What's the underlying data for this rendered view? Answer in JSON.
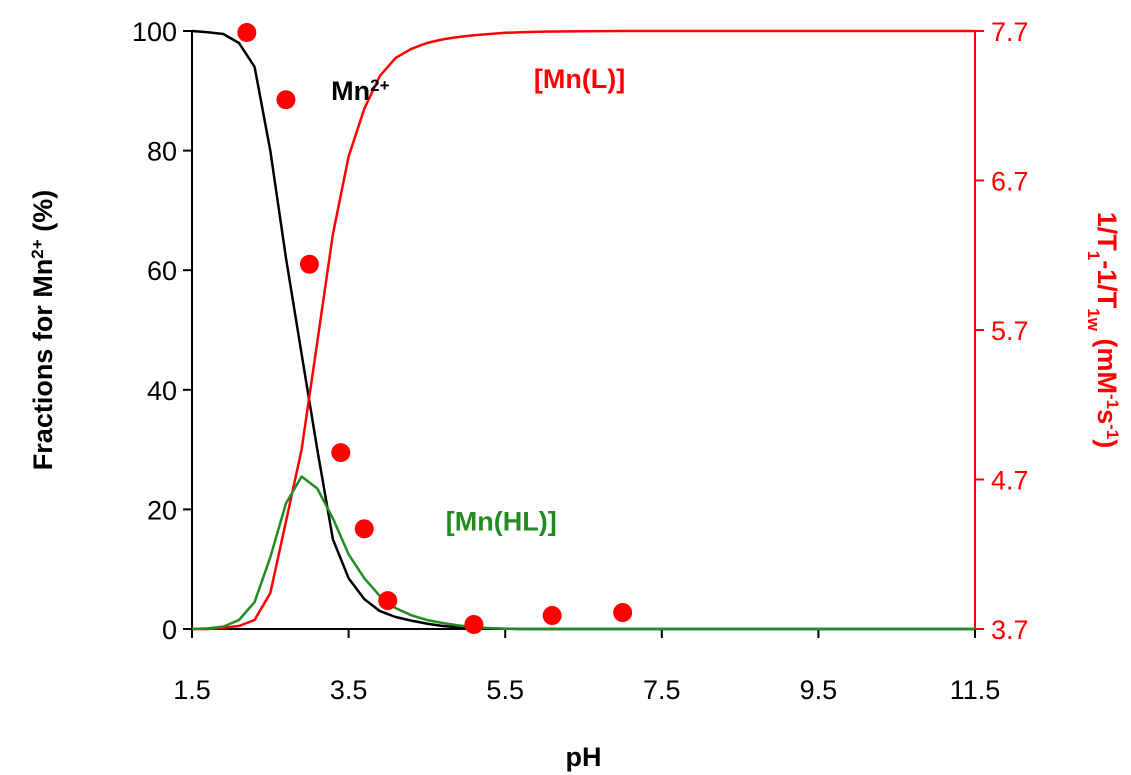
{
  "chart_data": {
    "type": "line",
    "xlabel": "pH",
    "ylabel_left": {
      "text": "Fractions for Mn",
      "sup": "2+",
      "tail": "  (%)"
    },
    "ylabel_right": [
      {
        "t": "1/T"
      },
      {
        "t": "1",
        "sub": true
      },
      {
        "t": "-1/T"
      },
      {
        "t": "1w",
        "sub": true
      },
      {
        "t": " (mM"
      },
      {
        "t": "-1",
        "sup": true
      },
      {
        "t": "s"
      },
      {
        "t": "-1",
        "sup": true
      },
      {
        "t": ")"
      }
    ],
    "xlim": [
      1.5,
      11.5
    ],
    "x_ticks": [
      "1.5",
      "3.5",
      "5.5",
      "7.5",
      "9.5",
      "11.5"
    ],
    "ylim_left": [
      0,
      100
    ],
    "y_ticks_left": [
      "0",
      "20",
      "40",
      "60",
      "80",
      "100"
    ],
    "ylim_right": [
      3.7,
      7.7
    ],
    "y_ticks_right": [
      "3.7",
      "4.7",
      "5.7",
      "6.7",
      "7.7"
    ],
    "colors": {
      "left_axis": "#000000",
      "right_axis": "#ff0000",
      "mn": "#000000",
      "mnl": "#ff0000",
      "mnhl": "#228b22",
      "points": "#ff0000"
    },
    "series": [
      {
        "name": "Mn",
        "sup": "2+",
        "axis": "left",
        "color": "#000000",
        "x": [
          1.5,
          1.7,
          1.9,
          2.1,
          2.3,
          2.5,
          2.7,
          2.9,
          3.1,
          3.3,
          3.5,
          3.7,
          3.9,
          4.1,
          4.3,
          4.5,
          4.7,
          4.9,
          5.1,
          5.3,
          5.5,
          5.7,
          6.0,
          7.0,
          11.5
        ],
        "values": [
          100,
          99.8,
          99.5,
          98,
          94,
          80,
          62,
          46,
          30,
          15,
          8.5,
          5,
          3,
          2,
          1.4,
          0.9,
          0.5,
          0.3,
          0.2,
          0.1,
          0.05,
          0,
          0,
          0,
          0
        ]
      },
      {
        "name": "[Mn(L)]",
        "axis": "left",
        "color": "#ff0000",
        "x": [
          1.5,
          1.7,
          1.9,
          2.1,
          2.3,
          2.5,
          2.7,
          2.9,
          3.1,
          3.3,
          3.5,
          3.7,
          3.9,
          4.1,
          4.3,
          4.5,
          4.7,
          4.9,
          5.1,
          5.3,
          5.5,
          5.7,
          6.0,
          6.5,
          7.0,
          11.5
        ],
        "values": [
          0,
          0,
          0.2,
          0.5,
          1.5,
          6,
          18,
          30,
          48,
          66,
          79,
          87,
          92.5,
          95.5,
          97,
          98,
          98.6,
          99,
          99.3,
          99.5,
          99.7,
          99.8,
          99.9,
          99.95,
          100,
          100
        ]
      },
      {
        "name": "[Mn(HL)]",
        "axis": "left",
        "color": "#228b22",
        "x": [
          1.5,
          1.7,
          1.9,
          2.1,
          2.3,
          2.5,
          2.7,
          2.9,
          3.1,
          3.3,
          3.5,
          3.7,
          3.9,
          4.1,
          4.3,
          4.5,
          4.7,
          4.9,
          5.1,
          5.3,
          5.5,
          5.7,
          6.0,
          11.5
        ],
        "values": [
          0,
          0.1,
          0.4,
          1.5,
          4.5,
          12,
          21,
          25.5,
          23.5,
          18.5,
          12.5,
          8.5,
          5.5,
          3.5,
          2.3,
          1.5,
          1,
          0.6,
          0.3,
          0.15,
          0.05,
          0,
          0,
          0
        ]
      }
    ],
    "points": {
      "axis": "right",
      "color": "#ff0000",
      "x": [
        2.2,
        2.7,
        3.0,
        3.4,
        3.7,
        4.0,
        5.1,
        6.1,
        7.0
      ],
      "values": [
        7.69,
        7.24,
        6.14,
        4.88,
        4.37,
        3.89,
        3.73,
        3.79,
        3.81
      ]
    }
  }
}
